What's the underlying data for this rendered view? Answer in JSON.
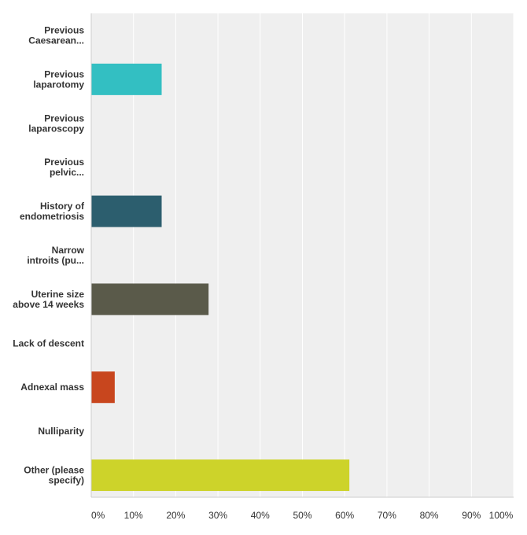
{
  "chart_data": {
    "type": "bar",
    "orientation": "horizontal",
    "categories": [
      [
        "Previous",
        "Caesarean..."
      ],
      [
        "Previous",
        "laparotomy"
      ],
      [
        "Previous",
        "laparoscopy"
      ],
      [
        "Previous",
        "pelvic..."
      ],
      [
        "History of",
        "endometriosis"
      ],
      [
        "Narrow",
        "introits (pu..."
      ],
      [
        "Uterine size",
        "above 14 weeks"
      ],
      [
        "Lack of descent"
      ],
      [
        "Adnexal mass"
      ],
      [
        "Nulliparity"
      ],
      [
        "Other (please",
        "specify)"
      ]
    ],
    "values": [
      0,
      16.67,
      0,
      0,
      16.67,
      0,
      27.78,
      0,
      5.56,
      0,
      61.11
    ],
    "colors": [
      "#5aa0c8",
      "#33bfc2",
      "#7ab3b8",
      "#8a9f60",
      "#2c5e6e",
      "#7a8a8a",
      "#5a5a4a",
      "#a0a0a0",
      "#c8461e",
      "#bbbb30",
      "#cdd32a"
    ],
    "x_ticks": [
      "0%",
      "10%",
      "20%",
      "30%",
      "40%",
      "50%",
      "60%",
      "70%",
      "80%",
      "90%",
      "100%"
    ],
    "xlim": [
      0,
      100
    ],
    "grid": true,
    "title": "",
    "xlabel": "",
    "ylabel": ""
  }
}
